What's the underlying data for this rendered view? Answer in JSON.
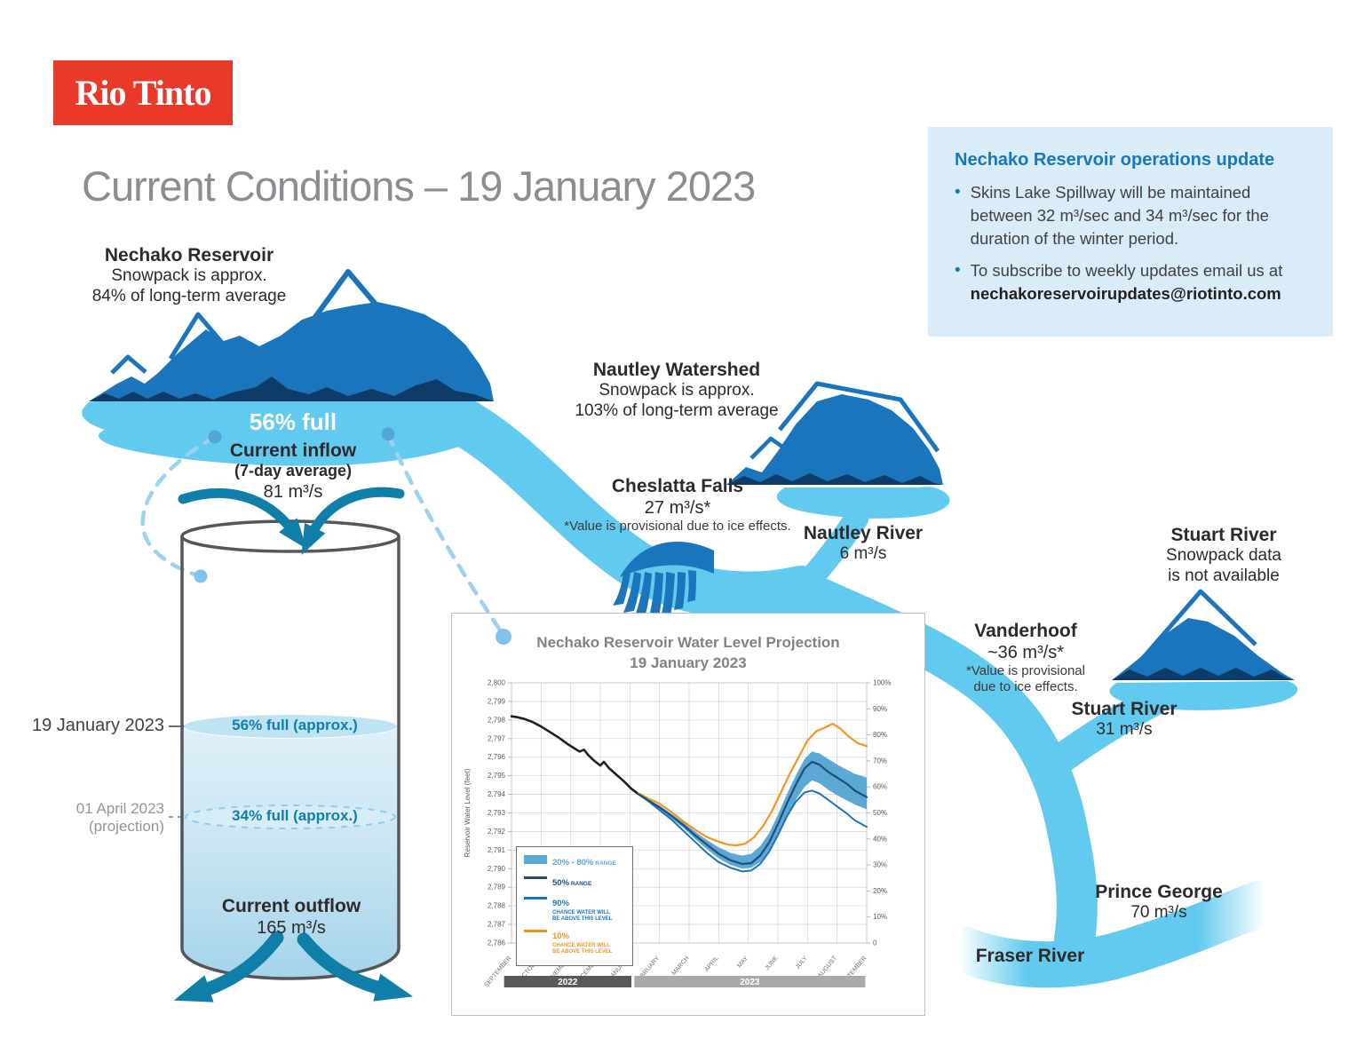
{
  "palette": {
    "brand_red": "#E8392B",
    "water_light_blue": "#63CAEF",
    "mountain_blue": "#1B75BC",
    "mountain_navy": "#0D3C68",
    "arrow_teal": "#0F7EA8",
    "info_box_bg": "#D9ECF7",
    "heading_blue": "#1778BE",
    "band_blue": "#5BA8D4",
    "line_navy": "#1F4E79",
    "line_blue": "#1C75BC",
    "line_orange": "#F7941E",
    "observed_black": "#231F20"
  },
  "logo_text": "Rio Tinto",
  "page_title": "Current Conditions – 19 January 2023",
  "update_box": {
    "heading": "Nechako Reservoir operations update",
    "bullet1": "Skins Lake Spillway will be maintained between 32 m³/sec and 34 m³/sec for the duration of the winter period.",
    "bullet2_text": "To subscribe to weekly updates email us at",
    "bullet2_email": "nechakoreservoirupdates@riotinto.com"
  },
  "nechako": {
    "name": "Nechako Reservoir",
    "line1": "Snowpack is approx.",
    "line2": "84% of long-term average",
    "full": "56% full",
    "inflow_title": "Current inflow",
    "inflow_sub": "(7-day average)",
    "inflow_value": "81 m³/s"
  },
  "nautley_watershed": {
    "name": "Nautley Watershed",
    "line1": "Snowpack is approx.",
    "line2": "103% of long-term average"
  },
  "cheslatta": {
    "name": "Cheslatta Falls",
    "value": "27 m³/s*",
    "note": "*Value is provisional due to ice effects."
  },
  "nautley_river": {
    "name": "Nautley River",
    "value": "6 m³/s"
  },
  "stuart_snowpack": {
    "name": "Stuart River",
    "line1": "Snowpack data",
    "line2": "is not available"
  },
  "vanderhoof": {
    "name": "Vanderhoof",
    "value": "~36 m³/s*",
    "note1": "*Value is provisional",
    "note2": "due to ice effects."
  },
  "stuart_river": {
    "name": "Stuart River",
    "value": "31 m³/s"
  },
  "prince_george": {
    "name": "Prince George",
    "value": "70 m³/s"
  },
  "fraser": {
    "name": "Fraser River"
  },
  "tank": {
    "date_current": "19 January 2023",
    "level_current": "56% full (approx.)",
    "date_proj": "01 April 2023",
    "proj_note": "(projection)",
    "level_proj": "34% full (approx.)",
    "outflow_title": "Current outflow",
    "outflow_value": "165 m³/s"
  },
  "chart_data": {
    "type": "line",
    "title": "Nechako Reservoir Water Level Projection",
    "subtitle": "19 January 2023",
    "ylabel": "Reservoir Water Level (feet)",
    "ylim": [
      2786,
      2800
    ],
    "y_ticks": [
      "2,786",
      "2,787",
      "2,788",
      "2,789",
      "2,790",
      "2,791",
      "2,792",
      "2,793",
      "2,794",
      "2,795",
      "2,796",
      "2,797",
      "2,798",
      "2,799",
      "2,800"
    ],
    "right_ticks": [
      "0",
      "10%",
      "20%",
      "30%",
      "40%",
      "50%",
      "60%",
      "70%",
      "80%",
      "90%",
      "100%"
    ],
    "x_tick_labels": [
      "SEPTEMBER",
      "OCTOBER",
      "NOVEMBER",
      "DECEMBER",
      "JANUARY",
      "FEBRUARY",
      "MARCH",
      "APRIL",
      "MAY",
      "JUNE",
      "JULY",
      "AUGUST",
      "SEPTEMBER"
    ],
    "grid": true,
    "legend_position": "lower-left",
    "year_bars": [
      {
        "label": "2022",
        "from": -0.25,
        "to": 4.05,
        "color": "#58595B"
      },
      {
        "label": "2023",
        "from": 4.15,
        "to": 11.95,
        "color": "#A7A9AC"
      }
    ],
    "band": {
      "name": "20% - 80% RANGE",
      "color": "#5BA8D4",
      "upper": [
        [
          4.65,
          2793.7
        ],
        [
          5,
          2793.4
        ],
        [
          5.4,
          2792.95
        ],
        [
          5.8,
          2792.5
        ],
        [
          6.2,
          2792.0
        ],
        [
          6.6,
          2791.55
        ],
        [
          7,
          2791.15
        ],
        [
          7.4,
          2790.85
        ],
        [
          7.8,
          2790.7
        ],
        [
          8.1,
          2790.8
        ],
        [
          8.4,
          2791.2
        ],
        [
          8.7,
          2791.9
        ],
        [
          9,
          2792.9
        ],
        [
          9.3,
          2794.0
        ],
        [
          9.6,
          2795.0
        ],
        [
          9.9,
          2795.9
        ],
        [
          10.15,
          2796.3
        ],
        [
          10.4,
          2796.2
        ],
        [
          10.7,
          2795.9
        ],
        [
          11,
          2795.6
        ],
        [
          11.3,
          2795.35
        ],
        [
          11.6,
          2795.1
        ],
        [
          12,
          2794.9
        ]
      ],
      "lower": [
        [
          4.65,
          2793.6
        ],
        [
          5,
          2793.2
        ],
        [
          5.4,
          2792.7
        ],
        [
          5.8,
          2792.2
        ],
        [
          6.2,
          2791.6
        ],
        [
          6.6,
          2791.05
        ],
        [
          7,
          2790.55
        ],
        [
          7.4,
          2790.2
        ],
        [
          7.8,
          2790.0
        ],
        [
          8.1,
          2790.05
        ],
        [
          8.4,
          2790.35
        ],
        [
          8.7,
          2790.95
        ],
        [
          9,
          2791.8
        ],
        [
          9.3,
          2792.8
        ],
        [
          9.6,
          2793.7
        ],
        [
          9.9,
          2794.4
        ],
        [
          10.15,
          2794.75
        ],
        [
          10.4,
          2794.6
        ],
        [
          10.7,
          2794.25
        ],
        [
          11,
          2793.95
        ],
        [
          11.3,
          2793.7
        ],
        [
          11.6,
          2793.45
        ],
        [
          12,
          2793.2
        ]
      ]
    },
    "series": [
      {
        "name": "Observed water level",
        "color": "#231F20",
        "width": 2.6,
        "points": [
          [
            0,
            2798.2
          ],
          [
            0.2,
            2798.15
          ],
          [
            0.45,
            2798.05
          ],
          [
            0.7,
            2797.9
          ],
          [
            1,
            2797.65
          ],
          [
            1.3,
            2797.35
          ],
          [
            1.6,
            2797.05
          ],
          [
            1.9,
            2796.7
          ],
          [
            2.1,
            2796.5
          ],
          [
            2.3,
            2796.3
          ],
          [
            2.45,
            2796.4
          ],
          [
            2.6,
            2796.1
          ],
          [
            2.8,
            2795.8
          ],
          [
            3,
            2795.55
          ],
          [
            3.12,
            2795.75
          ],
          [
            3.3,
            2795.4
          ],
          [
            3.55,
            2795.05
          ],
          [
            3.8,
            2794.7
          ],
          [
            4.05,
            2794.3
          ],
          [
            4.3,
            2794.0
          ],
          [
            4.65,
            2793.65
          ]
        ]
      },
      {
        "name": "10% chance water will be above this level",
        "color": "#F7941E",
        "width": 2.2,
        "points": [
          [
            4.3,
            2794.05
          ],
          [
            4.65,
            2793.75
          ],
          [
            5,
            2793.5
          ],
          [
            5.4,
            2793.05
          ],
          [
            5.8,
            2792.55
          ],
          [
            6.2,
            2792.1
          ],
          [
            6.6,
            2791.7
          ],
          [
            7,
            2791.45
          ],
          [
            7.3,
            2791.3
          ],
          [
            7.6,
            2791.25
          ],
          [
            7.9,
            2791.35
          ],
          [
            8.2,
            2791.7
          ],
          [
            8.5,
            2792.3
          ],
          [
            8.8,
            2793.1
          ],
          [
            9.1,
            2794.1
          ],
          [
            9.4,
            2795.1
          ],
          [
            9.7,
            2796.0
          ],
          [
            10,
            2796.9
          ],
          [
            10.3,
            2797.4
          ],
          [
            10.6,
            2797.6
          ],
          [
            10.85,
            2797.8
          ],
          [
            11.1,
            2797.55
          ],
          [
            11.4,
            2797.1
          ],
          [
            11.7,
            2796.75
          ],
          [
            12,
            2796.6
          ]
        ]
      },
      {
        "name": "90% chance water will be above this level",
        "color": "#1C75BC",
        "width": 2,
        "points": [
          [
            4.3,
            2794.0
          ],
          [
            4.65,
            2793.6
          ],
          [
            5,
            2793.15
          ],
          [
            5.4,
            2792.65
          ],
          [
            5.8,
            2792.05
          ],
          [
            6.2,
            2791.45
          ],
          [
            6.6,
            2790.85
          ],
          [
            7,
            2790.35
          ],
          [
            7.4,
            2790.05
          ],
          [
            7.8,
            2789.85
          ],
          [
            8.1,
            2789.9
          ],
          [
            8.4,
            2790.25
          ],
          [
            8.7,
            2790.9
          ],
          [
            9,
            2791.8
          ],
          [
            9.3,
            2792.8
          ],
          [
            9.6,
            2793.6
          ],
          [
            9.9,
            2794.1
          ],
          [
            10.15,
            2794.2
          ],
          [
            10.4,
            2794.05
          ],
          [
            10.7,
            2793.7
          ],
          [
            11,
            2793.35
          ],
          [
            11.3,
            2793.0
          ],
          [
            11.6,
            2792.6
          ],
          [
            12,
            2792.25
          ]
        ]
      },
      {
        "name": "50% range (median)",
        "color": "#1F4E79",
        "width": 2.2,
        "points": [
          [
            4.3,
            2794.0
          ],
          [
            4.65,
            2793.65
          ],
          [
            5,
            2793.3
          ],
          [
            5.4,
            2792.85
          ],
          [
            5.8,
            2792.35
          ],
          [
            6.2,
            2791.8
          ],
          [
            6.6,
            2791.3
          ],
          [
            7,
            2790.8
          ],
          [
            7.4,
            2790.45
          ],
          [
            7.8,
            2790.25
          ],
          [
            8.1,
            2790.3
          ],
          [
            8.4,
            2790.7
          ],
          [
            8.7,
            2791.4
          ],
          [
            9,
            2792.4
          ],
          [
            9.3,
            2793.5
          ],
          [
            9.6,
            2794.5
          ],
          [
            9.9,
            2795.4
          ],
          [
            10.15,
            2795.75
          ],
          [
            10.4,
            2795.6
          ],
          [
            10.7,
            2795.2
          ],
          [
            11,
            2794.9
          ],
          [
            11.3,
            2794.6
          ],
          [
            11.6,
            2794.2
          ],
          [
            12,
            2793.85
          ]
        ]
      }
    ],
    "legend": [
      {
        "type": "band",
        "color": "#5BA8D4",
        "label": "20% - 80%",
        "suffix": "RANGE"
      },
      {
        "type": "line",
        "color": "#1F4E79",
        "label": "50%",
        "suffix": "RANGE"
      },
      {
        "type": "line",
        "color": "#1C75BC",
        "label": "90%",
        "sub": [
          "CHANCE WATER WILL",
          "BE ABOVE THIS LEVEL"
        ]
      },
      {
        "type": "line",
        "color": "#F7941E",
        "label": "10%",
        "sub": [
          "CHANCE WATER WILL",
          "BE ABOVE THIS LEVEL"
        ]
      }
    ]
  }
}
